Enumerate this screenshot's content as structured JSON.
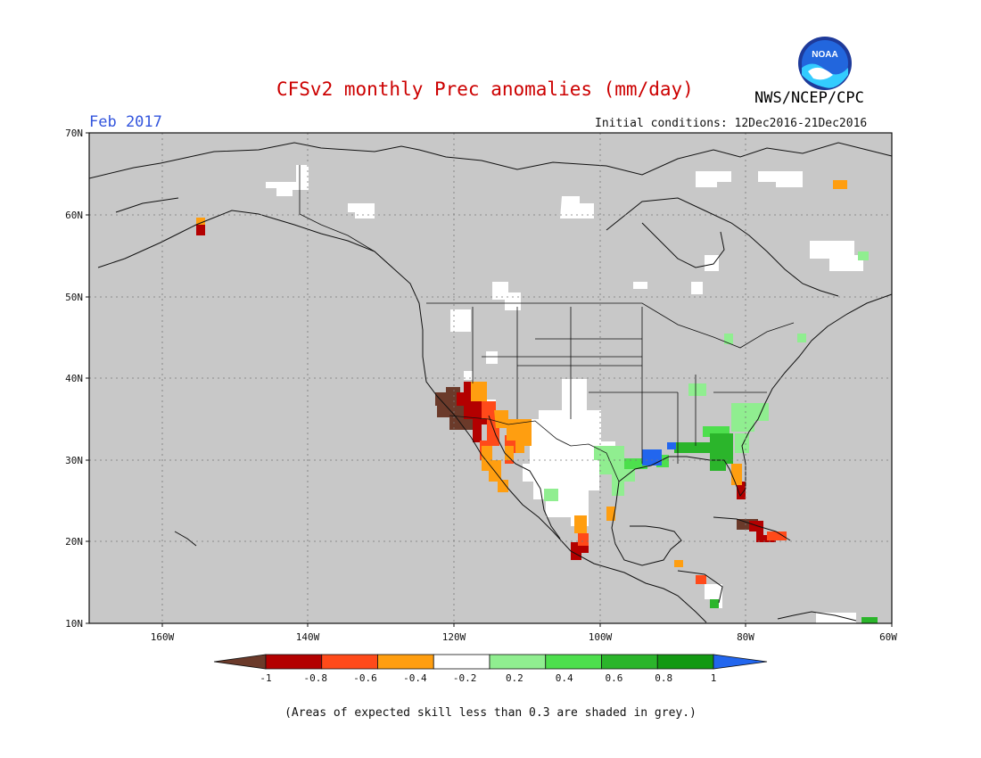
{
  "header": {
    "title": "CFSv2 monthly Prec anomalies (mm/day)",
    "month": "Feb 2017",
    "initial_conditions": "Initial conditions: 12Dec2016-21Dec2016",
    "agency": "NWS/NCEP/CPC",
    "logo_text": "NOAA"
  },
  "map": {
    "region": "North America",
    "lat_labels": [
      "70N",
      "60N",
      "50N",
      "40N",
      "30N",
      "20N",
      "10N"
    ],
    "lon_labels": [
      "160W",
      "140W",
      "120W",
      "100W",
      "80W",
      "60W"
    ],
    "background_color": "#c8c8c8",
    "coast_color": "#111111"
  },
  "colorbar": {
    "labels": [
      "-1",
      "-0.8",
      "-0.6",
      "-0.4",
      "-0.2",
      "0.2",
      "0.4",
      "0.6",
      "0.8",
      "1"
    ],
    "colors": [
      "#6b3a2a",
      "#b30000",
      "#ff4a1a",
      "#ff9e10",
      "#ffffff",
      "#90ee90",
      "#4ddf4d",
      "#2bb52b",
      "#139913",
      "#2266ee"
    ]
  },
  "footnote": "(Areas of expected skill less than 0.3 are shaded in grey.)"
}
